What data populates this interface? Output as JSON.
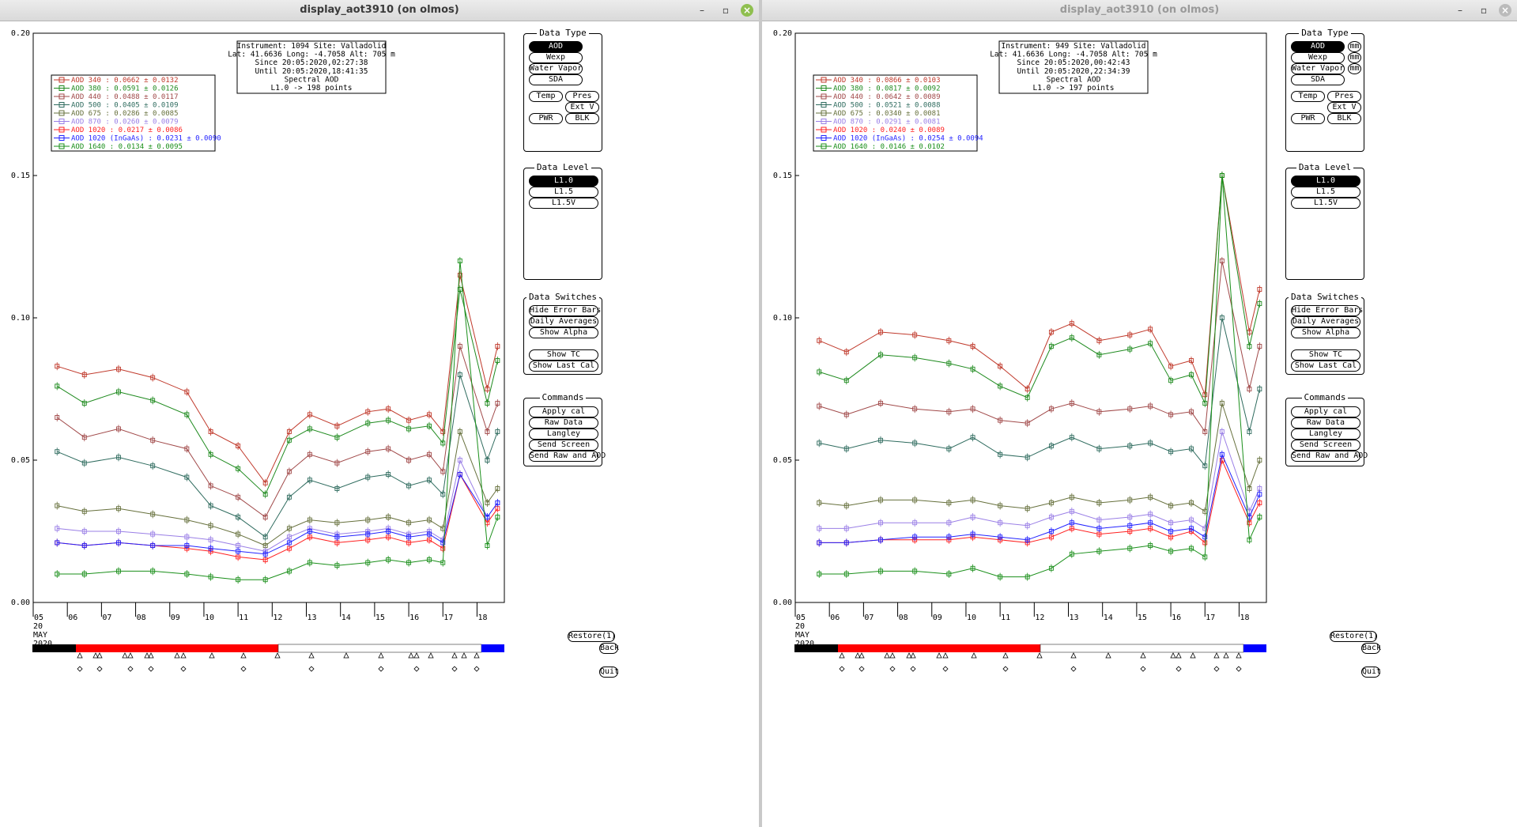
{
  "windows": [
    {
      "title": "display_aot3910 (on olmos)",
      "controls": {
        "minimize": "–",
        "maximize": "▫",
        "close": "×"
      },
      "info_lines": [
        "Instrument: 1094 Site: Valladolid",
        "Lat: 41.6636 Long: -4.7058 Alt: 705 m",
        "Since 20:05:2020,02:27:38",
        "Until 20:05:2020,18:41:35",
        "Spectral AOD",
        "L1.0 -> 198 points"
      ],
      "show_mm": false
    },
    {
      "title": "display_aot3910 (on olmos)",
      "controls": {
        "minimize": "–",
        "maximize": "▫",
        "close": "×"
      },
      "info_lines": [
        "Instrument: 949 Site: Valladolid",
        "Lat: 41.6636 Long: -4.7058 Alt: 705 m",
        "Since 20:05:2020,00:42:43",
        "Until 20:05:2020,22:34:39",
        "Spectral AOD",
        "L1.0 -> 197 points"
      ],
      "show_mm": true
    }
  ],
  "panels": {
    "data_type": {
      "title": "Data Type",
      "buttons": [
        "AOD",
        "Wexp",
        "Water Vapor",
        "SDA",
        "Temp",
        "Pres",
        "Ext V",
        "PWR",
        "BLK"
      ],
      "mm_label": "mm"
    },
    "data_level": {
      "title": "Data Level",
      "buttons": [
        "L1.0",
        "L1.5",
        "L1.5V"
      ]
    },
    "data_switches": {
      "title": "Data Switches",
      "buttons": [
        "Hide Error Bars",
        "Daily Averages",
        "Show Alpha",
        "Show TC",
        "Show Last Cal"
      ]
    },
    "commands": {
      "title": "Commands",
      "buttons": [
        "Apply cal",
        "Raw Data",
        "Langley",
        "Send Screen",
        "Send Raw and AOD"
      ]
    },
    "restore": "Restore(1)",
    "back": "Back",
    "quit": "Quit"
  },
  "colors": {
    "aod340": "#c0392b",
    "aod380": "#1e8a1e",
    "aod440": "#a04848",
    "aod500": "#2e6b5e",
    "aod675": "#66703c",
    "aod870": "#9a7fe6",
    "aod1020": "#ff2020",
    "aod1020i": "#2222ff",
    "aod1640": "#1a8f1a",
    "band_black": "#000000",
    "band_red": "#ff0000",
    "band_white": "#ffffff",
    "band_blue": "#0000ff"
  },
  "chart_data": [
    {
      "type": "line",
      "title": "",
      "xlabel": "",
      "ylabel": "",
      "ylim": [
        0.0,
        0.2
      ],
      "xlim": [
        5.0,
        18.8
      ],
      "x_ticks": [
        "05",
        "06",
        "07",
        "08",
        "09",
        "10",
        "11",
        "12",
        "13",
        "14",
        "15",
        "16",
        "17",
        "18"
      ],
      "x_sub": [
        "20",
        "MAY",
        "2020"
      ],
      "y_ticks": [
        "0.00",
        "0.05",
        "0.10",
        "0.15",
        "0.20"
      ],
      "legend_position": "top-left",
      "legend": [
        {
          "name": "AOD 340",
          "value": "0.0662",
          "err": "0.0132",
          "color_key": "aod340"
        },
        {
          "name": "AOD 380",
          "value": "0.0591",
          "err": "0.0126",
          "color_key": "aod380"
        },
        {
          "name": "AOD 440",
          "value": "0.0488",
          "err": "0.0117",
          "color_key": "aod440"
        },
        {
          "name": "AOD 500",
          "value": "0.0405",
          "err": "0.0109",
          "color_key": "aod500"
        },
        {
          "name": "AOD 675",
          "value": "0.0286",
          "err": "0.0085",
          "color_key": "aod675"
        },
        {
          "name": "AOD 870",
          "value": "0.0260",
          "err": "0.0079",
          "color_key": "aod870"
        },
        {
          "name": "AOD 1020",
          "value": "0.0217",
          "err": "0.0086",
          "color_key": "aod1020"
        },
        {
          "name": "AOD 1020 (InGaAs)",
          "value": "0.0231",
          "err": "0.0090",
          "color_key": "aod1020i"
        },
        {
          "name": "AOD 1640",
          "value": "0.0134",
          "err": "0.0095",
          "color_key": "aod1640"
        }
      ],
      "x": [
        5.7,
        6.5,
        7.5,
        8.5,
        9.5,
        10.2,
        11.0,
        11.8,
        12.5,
        13.1,
        13.9,
        14.8,
        15.4,
        16.0,
        16.6,
        17.0,
        17.5,
        18.3,
        18.6
      ],
      "series": [
        {
          "name": "AOD 340",
          "values": [
            0.083,
            0.08,
            0.082,
            0.079,
            0.074,
            0.06,
            0.055,
            0.042,
            0.06,
            0.066,
            0.062,
            0.067,
            0.068,
            0.064,
            0.066,
            0.06,
            0.115,
            0.075,
            0.09
          ]
        },
        {
          "name": "AOD 380",
          "values": [
            0.076,
            0.07,
            0.074,
            0.071,
            0.066,
            0.052,
            0.047,
            0.038,
            0.057,
            0.061,
            0.058,
            0.063,
            0.064,
            0.061,
            0.062,
            0.056,
            0.11,
            0.07,
            0.085
          ]
        },
        {
          "name": "AOD 440",
          "values": [
            0.065,
            0.058,
            0.061,
            0.057,
            0.054,
            0.041,
            0.037,
            0.03,
            0.046,
            0.052,
            0.049,
            0.053,
            0.054,
            0.05,
            0.052,
            0.046,
            0.09,
            0.06,
            0.07
          ]
        },
        {
          "name": "AOD 500",
          "values": [
            0.053,
            0.049,
            0.051,
            0.048,
            0.044,
            0.034,
            0.03,
            0.023,
            0.037,
            0.043,
            0.04,
            0.044,
            0.045,
            0.041,
            0.043,
            0.038,
            0.08,
            0.05,
            0.06
          ]
        },
        {
          "name": "AOD 675",
          "values": [
            0.034,
            0.032,
            0.033,
            0.031,
            0.029,
            0.027,
            0.024,
            0.02,
            0.026,
            0.029,
            0.028,
            0.029,
            0.03,
            0.028,
            0.029,
            0.026,
            0.06,
            0.035,
            0.04
          ]
        },
        {
          "name": "AOD 870",
          "values": [
            0.026,
            0.025,
            0.025,
            0.024,
            0.023,
            0.022,
            0.02,
            0.018,
            0.023,
            0.026,
            0.024,
            0.025,
            0.026,
            0.024,
            0.025,
            0.022,
            0.05,
            0.03,
            0.035
          ]
        },
        {
          "name": "AOD 1020",
          "values": [
            0.021,
            0.02,
            0.021,
            0.02,
            0.019,
            0.018,
            0.016,
            0.015,
            0.019,
            0.023,
            0.021,
            0.022,
            0.023,
            0.021,
            0.022,
            0.019,
            0.045,
            0.028,
            0.033
          ]
        },
        {
          "name": "AOD 1020 (InGaAs)",
          "values": [
            0.021,
            0.02,
            0.021,
            0.02,
            0.02,
            0.019,
            0.018,
            0.017,
            0.021,
            0.025,
            0.023,
            0.024,
            0.025,
            0.023,
            0.024,
            0.021,
            0.045,
            0.03,
            0.035
          ]
        },
        {
          "name": "AOD 1640",
          "values": [
            0.01,
            0.01,
            0.011,
            0.011,
            0.01,
            0.009,
            0.008,
            0.008,
            0.011,
            0.014,
            0.013,
            0.014,
            0.015,
            0.014,
            0.015,
            0.014,
            0.12,
            0.02,
            0.03
          ]
        }
      ]
    },
    {
      "type": "line",
      "title": "",
      "xlabel": "",
      "ylabel": "",
      "ylim": [
        0.0,
        0.2
      ],
      "xlim": [
        5.0,
        18.8
      ],
      "x_ticks": [
        "05",
        "06",
        "07",
        "08",
        "09",
        "10",
        "11",
        "12",
        "13",
        "14",
        "15",
        "16",
        "17",
        "18"
      ],
      "x_sub": [
        "20",
        "MAY",
        "2020"
      ],
      "y_ticks": [
        "0.00",
        "0.05",
        "0.10",
        "0.15",
        "0.20"
      ],
      "legend_position": "top-left",
      "legend": [
        {
          "name": "AOD 340",
          "value": "0.0866",
          "err": "0.0103",
          "color_key": "aod340"
        },
        {
          "name": "AOD 380",
          "value": "0.0817",
          "err": "0.0092",
          "color_key": "aod380"
        },
        {
          "name": "AOD 440",
          "value": "0.0642",
          "err": "0.0089",
          "color_key": "aod440"
        },
        {
          "name": "AOD 500",
          "value": "0.0521",
          "err": "0.0088",
          "color_key": "aod500"
        },
        {
          "name": "AOD 675",
          "value": "0.0340",
          "err": "0.0081",
          "color_key": "aod675"
        },
        {
          "name": "AOD 870",
          "value": "0.0291",
          "err": "0.0081",
          "color_key": "aod870"
        },
        {
          "name": "AOD 1020",
          "value": "0.0240",
          "err": "0.0089",
          "color_key": "aod1020"
        },
        {
          "name": "AOD 1020 (InGaAs)",
          "value": "0.0254",
          "err": "0.0094",
          "color_key": "aod1020i"
        },
        {
          "name": "AOD 1640",
          "value": "0.0146",
          "err": "0.0102",
          "color_key": "aod1640"
        }
      ],
      "x": [
        5.7,
        6.5,
        7.5,
        8.5,
        9.5,
        10.2,
        11.0,
        11.8,
        12.5,
        13.1,
        13.9,
        14.8,
        15.4,
        16.0,
        16.6,
        17.0,
        17.5,
        18.3,
        18.6
      ],
      "series": [
        {
          "name": "AOD 340",
          "values": [
            0.092,
            0.088,
            0.095,
            0.094,
            0.092,
            0.09,
            0.083,
            0.075,
            0.095,
            0.098,
            0.092,
            0.094,
            0.096,
            0.083,
            0.085,
            0.073,
            0.15,
            0.095,
            0.11
          ]
        },
        {
          "name": "AOD 380",
          "values": [
            0.081,
            0.078,
            0.087,
            0.086,
            0.084,
            0.082,
            0.076,
            0.072,
            0.09,
            0.093,
            0.087,
            0.089,
            0.091,
            0.078,
            0.08,
            0.07,
            0.15,
            0.09,
            0.105
          ]
        },
        {
          "name": "AOD 440",
          "values": [
            0.069,
            0.066,
            0.07,
            0.068,
            0.067,
            0.068,
            0.064,
            0.063,
            0.068,
            0.07,
            0.067,
            0.068,
            0.069,
            0.066,
            0.067,
            0.06,
            0.12,
            0.075,
            0.09
          ]
        },
        {
          "name": "AOD 500",
          "values": [
            0.056,
            0.054,
            0.057,
            0.056,
            0.054,
            0.058,
            0.052,
            0.051,
            0.055,
            0.058,
            0.054,
            0.055,
            0.056,
            0.053,
            0.054,
            0.048,
            0.1,
            0.06,
            0.075
          ]
        },
        {
          "name": "AOD 675",
          "values": [
            0.035,
            0.034,
            0.036,
            0.036,
            0.035,
            0.036,
            0.034,
            0.033,
            0.035,
            0.037,
            0.035,
            0.036,
            0.037,
            0.034,
            0.035,
            0.032,
            0.07,
            0.04,
            0.05
          ]
        },
        {
          "name": "AOD 870",
          "values": [
            0.026,
            0.026,
            0.028,
            0.028,
            0.028,
            0.03,
            0.028,
            0.027,
            0.03,
            0.032,
            0.029,
            0.03,
            0.031,
            0.028,
            0.029,
            0.026,
            0.06,
            0.032,
            0.04
          ]
        },
        {
          "name": "AOD 1020",
          "values": [
            0.021,
            0.021,
            0.022,
            0.022,
            0.022,
            0.023,
            0.022,
            0.021,
            0.023,
            0.026,
            0.024,
            0.025,
            0.026,
            0.023,
            0.025,
            0.021,
            0.05,
            0.028,
            0.035
          ]
        },
        {
          "name": "AOD 1020 (InGaAs)",
          "values": [
            0.021,
            0.021,
            0.022,
            0.023,
            0.023,
            0.024,
            0.023,
            0.022,
            0.025,
            0.028,
            0.026,
            0.027,
            0.028,
            0.025,
            0.026,
            0.023,
            0.052,
            0.03,
            0.038
          ]
        },
        {
          "name": "AOD 1640",
          "values": [
            0.01,
            0.01,
            0.011,
            0.011,
            0.01,
            0.012,
            0.009,
            0.009,
            0.012,
            0.017,
            0.018,
            0.019,
            0.02,
            0.018,
            0.019,
            0.016,
            0.15,
            0.022,
            0.03
          ]
        }
      ]
    }
  ]
}
